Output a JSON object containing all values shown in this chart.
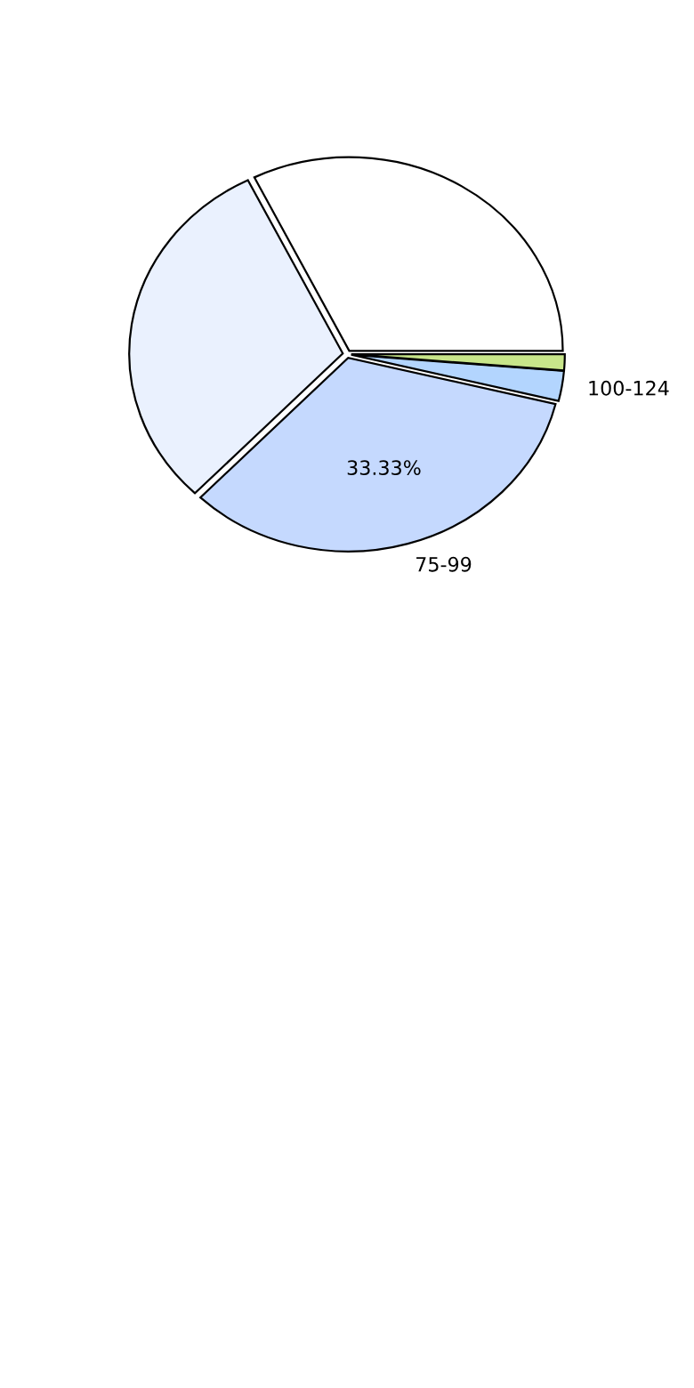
{
  "chart_data": {
    "type": "pie",
    "categories": [
      null,
      null,
      "75-99",
      "100-124",
      null
    ],
    "values": [
      32.33,
      30.5,
      33.33,
      2.5,
      1.34
    ],
    "value_labels": [
      null,
      null,
      "33.33%",
      null,
      null
    ],
    "colors": [
      "#ffffff",
      "#eaf1fe",
      "#c5d9fe",
      "#b3d5fe",
      "#c8e68a"
    ],
    "legend": false
  }
}
